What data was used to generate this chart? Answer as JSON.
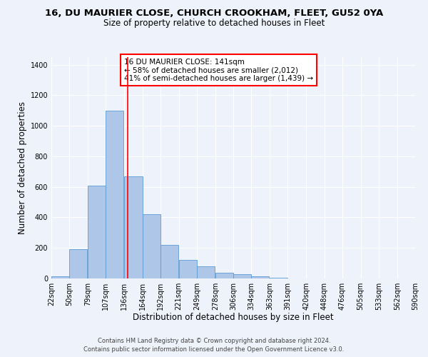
{
  "title_line1": "16, DU MAURIER CLOSE, CHURCH CROOKHAM, FLEET, GU52 0YA",
  "title_line2": "Size of property relative to detached houses in Fleet",
  "xlabel": "Distribution of detached houses by size in Fleet",
  "ylabel": "Number of detached properties",
  "bar_left_edges": [
    22,
    50,
    79,
    107,
    136,
    164,
    192,
    221,
    249,
    278,
    306,
    334,
    363,
    391,
    420,
    448,
    476,
    505,
    533,
    562
  ],
  "bar_heights": [
    15,
    193,
    608,
    1100,
    670,
    422,
    218,
    122,
    78,
    37,
    30,
    15,
    4,
    1,
    0,
    0,
    0,
    0,
    0,
    0
  ],
  "bin_width": 28,
  "bar_color": "#aec6e8",
  "bar_edge_color": "#5b9bd5",
  "tick_labels": [
    "22sqm",
    "50sqm",
    "79sqm",
    "107sqm",
    "136sqm",
    "164sqm",
    "192sqm",
    "221sqm",
    "249sqm",
    "278sqm",
    "306sqm",
    "334sqm",
    "363sqm",
    "391sqm",
    "420sqm",
    "448sqm",
    "476sqm",
    "505sqm",
    "533sqm",
    "562sqm",
    "590sqm"
  ],
  "vline_x": 141,
  "vline_color": "red",
  "ylim": [
    0,
    1450
  ],
  "yticks": [
    0,
    200,
    400,
    600,
    800,
    1000,
    1200,
    1400
  ],
  "annotation_title": "16 DU MAURIER CLOSE: 141sqm",
  "annotation_line2": "← 58% of detached houses are smaller (2,012)",
  "annotation_line3": "41% of semi-detached houses are larger (1,439) →",
  "footer_line1": "Contains HM Land Registry data © Crown copyright and database right 2024.",
  "footer_line2": "Contains public sector information licensed under the Open Government Licence v3.0.",
  "bg_color": "#eef2fa",
  "grid_color": "#ffffff",
  "title_fontsize": 9.5,
  "subtitle_fontsize": 8.5,
  "axis_label_fontsize": 8.5,
  "tick_fontsize": 7,
  "annotation_fontsize": 7.5,
  "footer_fontsize": 6
}
